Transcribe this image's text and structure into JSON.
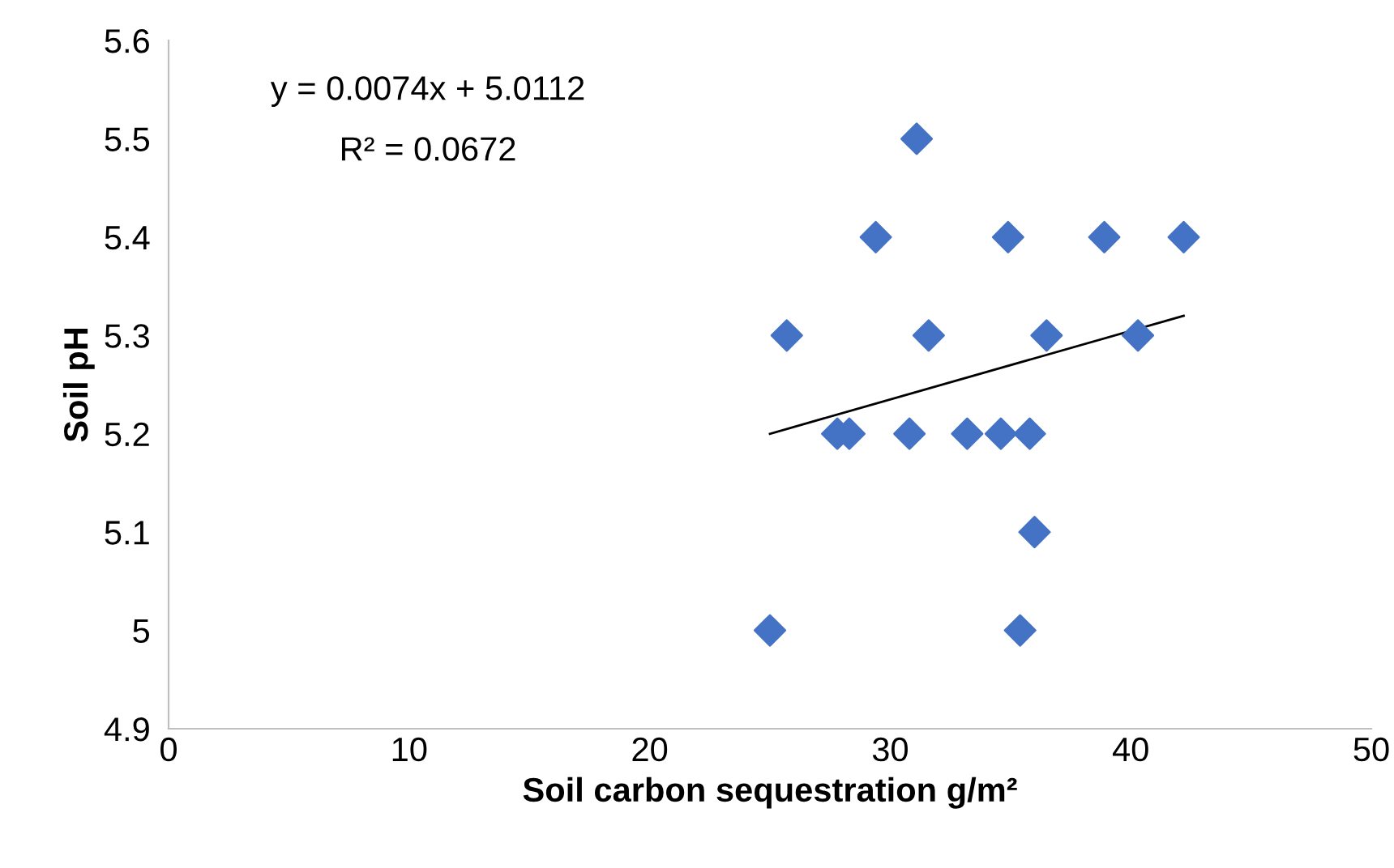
{
  "chart_data": {
    "type": "scatter",
    "xlabel": "Soil carbon sequestration g/m²",
    "ylabel": "Soil pH",
    "xlim": [
      0,
      50
    ],
    "xticks": [
      0,
      10,
      20,
      30,
      40,
      50
    ],
    "ylim": [
      4.9,
      5.6
    ],
    "yticks": [
      {
        "value": 4.9,
        "label": "4.9"
      },
      {
        "value": 5.0,
        "label": "5"
      },
      {
        "value": 5.1,
        "label": "5.1"
      },
      {
        "value": 5.2,
        "label": "5.2"
      },
      {
        "value": 5.3,
        "label": "5.3"
      },
      {
        "value": 5.4,
        "label": "5.4"
      },
      {
        "value": 5.5,
        "label": "5.5"
      },
      {
        "value": 5.6,
        "label": "5.6"
      }
    ],
    "grid": false,
    "legend": false,
    "marker": "diamond",
    "annotations": [
      "y = 0.0074x + 5.0112",
      "R² = 0.0672"
    ],
    "series": [
      {
        "color": "#4472c4",
        "x": [
          25,
          25.7,
          27.8,
          28.3,
          29.4,
          30.8,
          31.1,
          31.6,
          33.2,
          34.6,
          34.9,
          35.4,
          35.8,
          36.0,
          36.5,
          38.9,
          40.3,
          42.2
        ],
        "values": [
          5.0,
          5.3,
          5.2,
          5.2,
          5.4,
          5.2,
          5.5,
          5.3,
          5.2,
          5.2,
          5.4,
          5.0,
          5.2,
          5.1,
          5.3,
          5.4,
          5.3,
          5.4
        ]
      },
      {
        "type": "line",
        "color": "#000000",
        "marker": "none",
        "x": [
          25,
          42.2
        ],
        "values": [
          5.2,
          5.32
        ]
      }
    ]
  }
}
